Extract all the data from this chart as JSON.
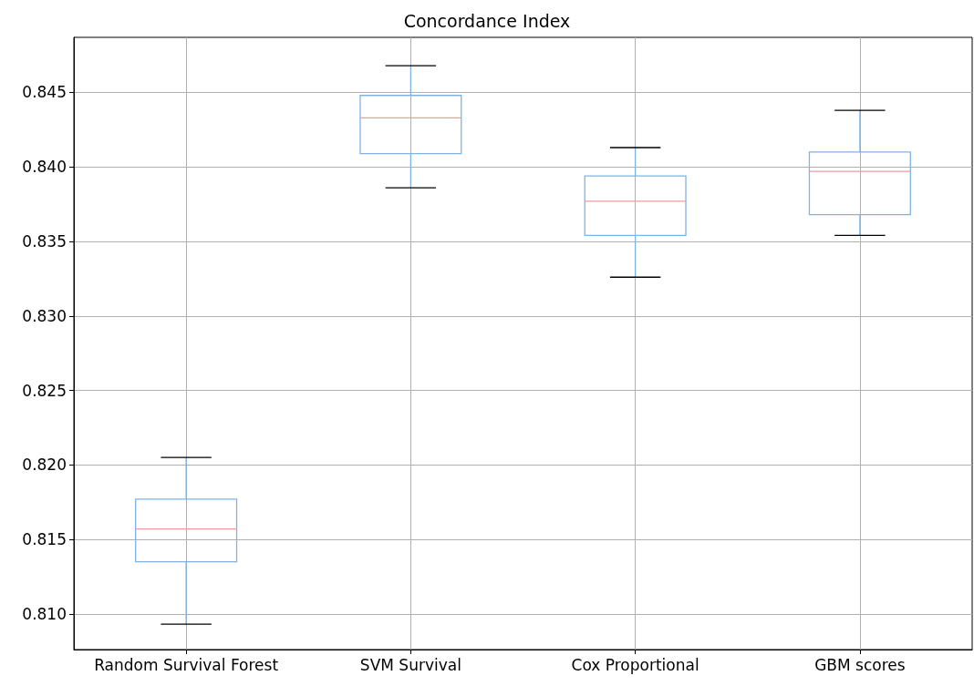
{
  "chart_data": {
    "type": "box",
    "title": "Concordance Index",
    "categories": [
      "Random Survival Forest",
      "SVM Survival",
      "Cox Proportional",
      "GBM scores"
    ],
    "boxes": [
      {
        "low": 0.8093,
        "q1": 0.8135,
        "median": 0.8157,
        "q3": 0.8177,
        "high": 0.8205
      },
      {
        "low": 0.8386,
        "q1": 0.8409,
        "median": 0.8433,
        "q3": 0.8448,
        "high": 0.8468
      },
      {
        "low": 0.8326,
        "q1": 0.8354,
        "median": 0.8377,
        "q3": 0.8394,
        "high": 0.8413
      },
      {
        "low": 0.8354,
        "q1": 0.8368,
        "median": 0.8397,
        "q3": 0.841,
        "high": 0.8438
      }
    ],
    "color": "#7fb2e5",
    "ylim": [
      0.8076,
      0.8487
    ],
    "yticks": [
      {
        "value": 0.81,
        "label": "0.810"
      },
      0.815,
      {
        "value": 0.82,
        "label": "0.820"
      },
      0.825,
      {
        "value": 0.83,
        "label": "0.830"
      },
      0.835,
      {
        "value": 0.84,
        "label": "0.840"
      },
      0.845
    ],
    "grid": true
  }
}
